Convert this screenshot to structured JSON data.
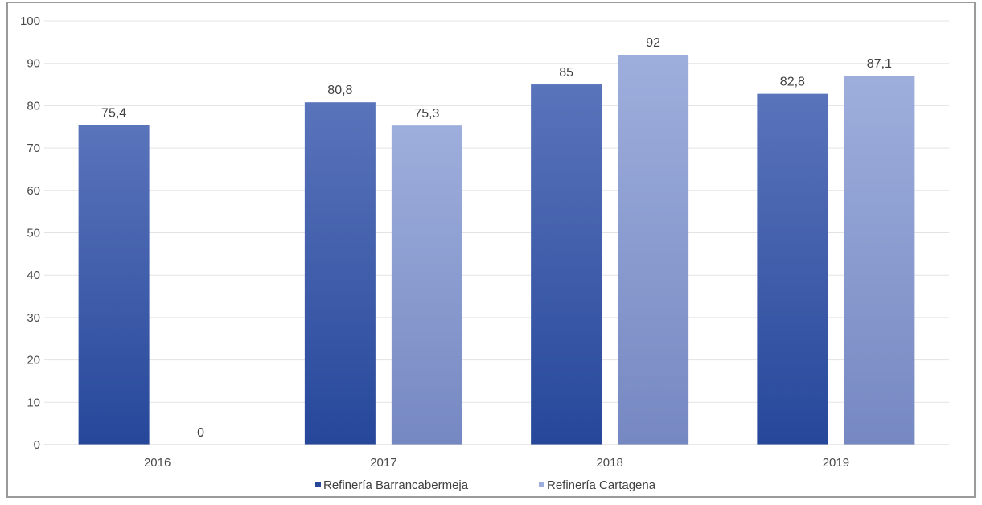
{
  "chart_data": {
    "type": "bar",
    "categories": [
      "2016",
      "2017",
      "2018",
      "2019"
    ],
    "series": [
      {
        "name": "Refinería Barrancabermeja",
        "values": [
          75.4,
          80.8,
          85,
          82.8
        ],
        "labels": [
          "75,4",
          "80,8",
          "85",
          "82,8"
        ],
        "color_top": "#5a74bb",
        "color_bottom": "#26479a"
      },
      {
        "name": "Refinería Cartagena",
        "values": [
          0,
          75.3,
          92,
          87.1
        ],
        "labels": [
          "0",
          "75,3",
          "92",
          "87,1"
        ],
        "color_top": "#9eaedc",
        "color_bottom": "#7688c2"
      }
    ],
    "ylim": [
      0,
      100
    ],
    "yticks": [
      0,
      10,
      20,
      30,
      40,
      50,
      60,
      70,
      80,
      90,
      100
    ],
    "grid": true,
    "legend_position": "bottom-center"
  }
}
